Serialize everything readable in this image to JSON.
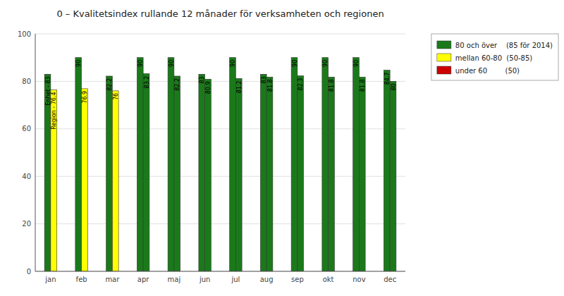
{
  "chart_data": {
    "type": "bar",
    "title": "0 – Kvalitetsindex rullande 12 månader för verksamheten och regionen",
    "categories": [
      "jan",
      "feb",
      "mar",
      "apr",
      "maj",
      "jun",
      "jul",
      "aug",
      "sep",
      "okt",
      "nov",
      "dec"
    ],
    "series": [
      {
        "values": [
          83,
          90,
          82.2,
          90,
          90,
          83,
          90,
          83,
          90,
          90,
          90,
          84.7
        ],
        "value_labels": [
          "Enhet - 83",
          "90",
          "82.2",
          "90",
          "90",
          "83",
          "90",
          "83",
          "90",
          "90",
          "90",
          "84.7"
        ],
        "colors": [
          "#1a7a1a",
          "#1a7a1a",
          "#1a7a1a",
          "#1a7a1a",
          "#1a7a1a",
          "#1a7a1a",
          "#1a7a1a",
          "#1a7a1a",
          "#1a7a1a",
          "#1a7a1a",
          "#1a7a1a",
          "#1a7a1a"
        ]
      },
      {
        "values": [
          76.4,
          76.9,
          76,
          83.2,
          82.2,
          80.9,
          81.2,
          81.8,
          82.3,
          81.8,
          81.8,
          80
        ],
        "value_labels": [
          "Region - 76.4",
          "76.9",
          "76",
          "83.2",
          "82.2",
          "80.9",
          "81.2",
          "81.8",
          "82.3",
          "81.8",
          "81.8",
          "80"
        ],
        "colors": [
          "#ffff00",
          "#ffff00",
          "#ffff00",
          "#1a7a1a",
          "#1a7a1a",
          "#1a7a1a",
          "#1a7a1a",
          "#1a7a1a",
          "#1a7a1a",
          "#1a7a1a",
          "#1a7a1a",
          "#1a7a1a"
        ]
      }
    ],
    "legend_items": [
      {
        "label": "80 och över    (85 för 2014)",
        "color": "#1a7a1a"
      },
      {
        "label": "mellan 60-80  (50-85)",
        "color": "#ffff00"
      },
      {
        "label": "under 60        (50)",
        "color": "#cc0000"
      }
    ],
    "legend": "upper right",
    "data_labels": true,
    "ylim": [
      0,
      100
    ],
    "yticks": [
      0,
      20,
      40,
      60,
      80,
      100
    ],
    "grid": true
  }
}
